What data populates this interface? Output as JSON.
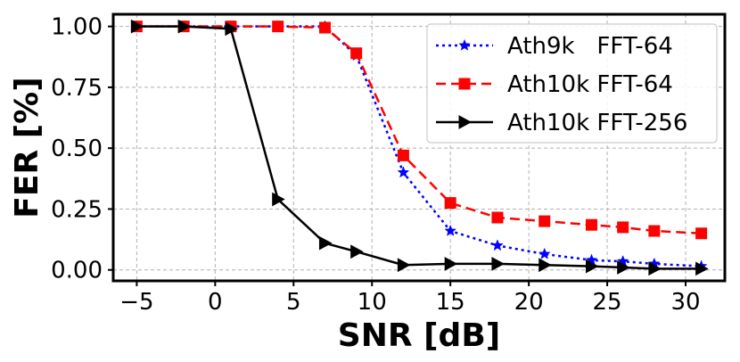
{
  "chart_data": {
    "type": "line",
    "title": "",
    "xlabel": "SNR [dB]",
    "ylabel": "FER [%]",
    "xlim": [
      -6.5,
      32.5
    ],
    "ylim": [
      -0.045,
      1.05
    ],
    "xticks": [
      -5,
      0,
      5,
      10,
      15,
      20,
      25,
      30
    ],
    "xtick_labels": [
      "−5",
      "0",
      "5",
      "10",
      "15",
      "20",
      "25",
      "30"
    ],
    "yticks": [
      0.0,
      0.25,
      0.5,
      0.75,
      1.0
    ],
    "ytick_labels": [
      "0.00",
      "0.25",
      "0.50",
      "0.75",
      "1.00"
    ],
    "grid": true,
    "legend_position": "top-right",
    "series": [
      {
        "name": "Ath9k   FFT-64",
        "color": "#0000ff",
        "line_style": "dotted",
        "marker": "star",
        "x": [
          -5,
          -2,
          1,
          4,
          7,
          9,
          12,
          15,
          18,
          21,
          24,
          26,
          28,
          31
        ],
        "values": [
          1.0,
          1.0,
          1.0,
          1.0,
          1.0,
          0.88,
          0.4,
          0.16,
          0.1,
          0.065,
          0.04,
          0.035,
          0.025,
          0.015
        ]
      },
      {
        "name": "Ath10k FFT-64",
        "color": "#ff0000",
        "line_style": "dashed",
        "marker": "square",
        "x": [
          -5,
          -2,
          1,
          4,
          7,
          9,
          12,
          15,
          18,
          21,
          24,
          26,
          28,
          31
        ],
        "values": [
          1.0,
          1.0,
          1.0,
          1.0,
          0.995,
          0.89,
          0.47,
          0.275,
          0.215,
          0.2,
          0.185,
          0.175,
          0.16,
          0.15
        ]
      },
      {
        "name": "Ath10k FFT-256",
        "color": "#000000",
        "line_style": "solid",
        "marker": "triangle-right",
        "x": [
          -5,
          -2,
          1,
          4,
          7,
          9,
          12,
          15,
          18,
          21,
          24,
          26,
          28,
          31
        ],
        "values": [
          1.0,
          1.0,
          0.99,
          0.29,
          0.11,
          0.075,
          0.02,
          0.025,
          0.025,
          0.02,
          0.015,
          0.01,
          0.005,
          0.005
        ]
      }
    ]
  }
}
